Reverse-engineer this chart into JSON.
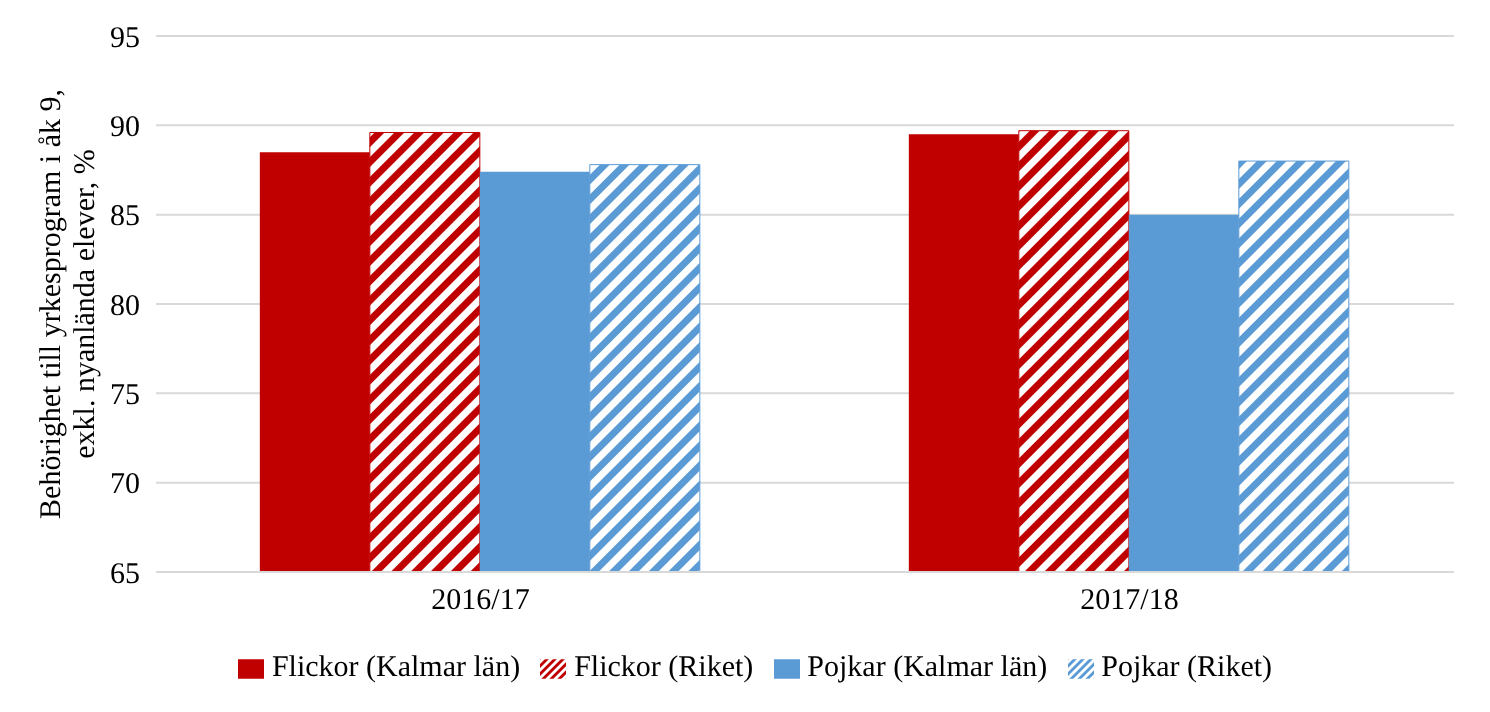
{
  "chart_data": {
    "type": "bar",
    "ylabel": "Behörighet till yrkesprogram i åk 9, exkl. nyanlända elever, %",
    "categories": [
      "2016/17",
      "2017/18"
    ],
    "series": [
      {
        "name": "Flickor (Kalmar län)",
        "color": "#c00000",
        "values": [
          88.5,
          89.5
        ]
      },
      {
        "name": "Flickor (Riket)",
        "color": "#c00000",
        "values": [
          89.6,
          89.7
        ]
      },
      {
        "name": "Pojkar (Kalmar län)",
        "color": "#5b9bd5",
        "values": [
          87.4,
          85.0
        ]
      },
      {
        "name": "Pojkar (Riket)",
        "color": "#5b9bd5",
        "values": [
          87.8,
          88.0
        ]
      }
    ],
    "ylim": [
      65,
      95
    ],
    "yticks": [
      65,
      70,
      75,
      80,
      85,
      90,
      95
    ],
    "grid": "y",
    "legend": "bottom"
  }
}
